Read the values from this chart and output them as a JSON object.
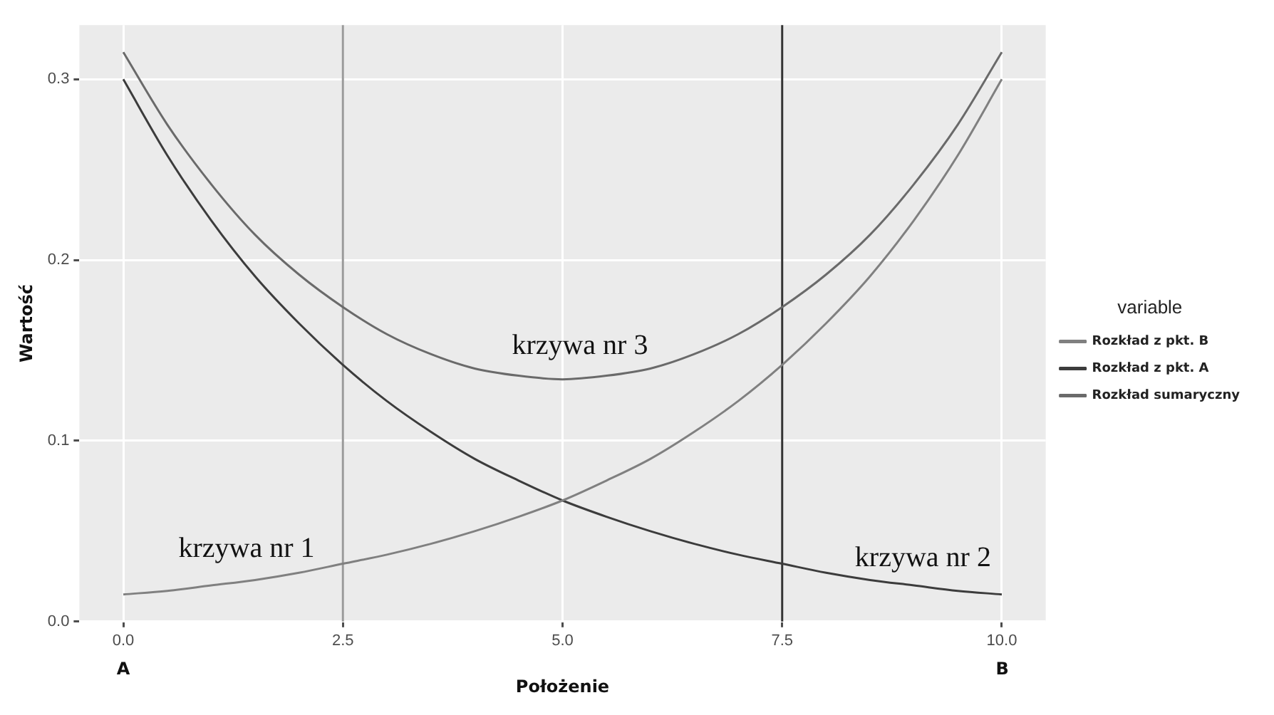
{
  "chart_data": {
    "type": "line",
    "xlabel": "Położenie",
    "ylabel": "Wartość",
    "legend_title": "variable",
    "x": [
      0,
      0.5,
      1,
      1.5,
      2,
      2.5,
      3,
      3.5,
      4,
      4.5,
      5,
      5.5,
      6,
      6.5,
      7,
      7.5,
      8,
      8.5,
      9,
      9.5,
      10
    ],
    "series": [
      {
        "name": "Rozkład z pkt. B",
        "color": "#808080",
        "values": [
          0.015,
          0.017,
          0.02,
          0.023,
          0.027,
          0.032,
          0.037,
          0.043,
          0.05,
          0.058,
          0.067,
          0.078,
          0.09,
          0.105,
          0.122,
          0.142,
          0.165,
          0.191,
          0.222,
          0.258,
          0.3
        ]
      },
      {
        "name": "Rozkład z pkt. A",
        "color": "#3c3c3c",
        "values": [
          0.3,
          0.258,
          0.222,
          0.191,
          0.165,
          0.142,
          0.122,
          0.105,
          0.09,
          0.078,
          0.067,
          0.058,
          0.05,
          0.043,
          0.037,
          0.032,
          0.027,
          0.023,
          0.02,
          0.017,
          0.015
        ]
      },
      {
        "name": "Rozkład sumaryczny",
        "color": "#6a6a6a",
        "values": [
          0.315,
          0.275,
          0.242,
          0.214,
          0.192,
          0.174,
          0.159,
          0.148,
          0.14,
          0.136,
          0.134,
          0.136,
          0.14,
          0.148,
          0.159,
          0.174,
          0.192,
          0.214,
          0.242,
          0.275,
          0.315
        ]
      }
    ],
    "xlim": [
      -0.5,
      10.5
    ],
    "xticks": [
      {
        "value": 0,
        "label": "0.0"
      },
      2.5,
      {
        "value": 5,
        "label": "5.0"
      },
      7.5,
      {
        "value": 10,
        "label": "10.0"
      }
    ],
    "ylim": [
      0,
      0.33
    ],
    "yticks": [
      {
        "value": 0,
        "label": "0.0"
      },
      0.1,
      0.2,
      0.3
    ],
    "ref_lines": [
      {
        "axis": "x",
        "value": 2.5,
        "color": "#9a9a9a"
      },
      {
        "axis": "x",
        "value": 7.5,
        "color": "#333333"
      }
    ],
    "annotations": [
      "krzywa nr 1",
      "krzywa nr 3",
      "krzywa nr 2",
      "A",
      "B"
    ],
    "grid": true,
    "legend": "right",
    "marker": "none",
    "line_style": "solid"
  }
}
